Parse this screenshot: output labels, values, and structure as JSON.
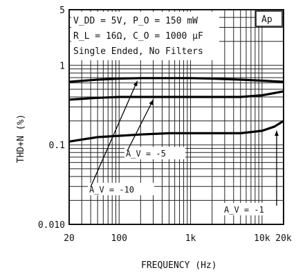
{
  "chart_data": {
    "type": "line",
    "xlabel": "FREQUENCY (Hz)",
    "ylabel": "THD+N (%)",
    "x_scale": "log",
    "y_scale": "log",
    "xlim": [
      20,
      20000
    ],
    "ylim": [
      0.01,
      5
    ],
    "grid": true,
    "x_ticks": [
      {
        "value": 20,
        "label": "20"
      },
      {
        "value": 100,
        "label": "100"
      },
      {
        "value": 1000,
        "label": "1k"
      },
      {
        "value": 10000,
        "label": "10k"
      },
      {
        "value": 20000,
        "label": "20k"
      }
    ],
    "y_ticks": [
      {
        "value": 5,
        "label": "5"
      },
      {
        "value": 1,
        "label": "1"
      },
      {
        "value": 0.1,
        "label": "0.1"
      },
      {
        "value": 0.01,
        "label": "0.010"
      }
    ],
    "conditions": [
      "V_DD = 5V, P_O = 150 mW",
      "R_L = 16Ω, C_O = 1000 μF",
      "Single Ended, No Filters"
    ],
    "badge": "Ap",
    "series": [
      {
        "name": "A_V = -10",
        "x": [
          20,
          50,
          100,
          200,
          500,
          1000,
          2000,
          5000,
          10000,
          20000
        ],
        "y": [
          0.62,
          0.66,
          0.68,
          0.69,
          0.69,
          0.69,
          0.68,
          0.66,
          0.64,
          0.62
        ]
      },
      {
        "name": "A_V = -5",
        "x": [
          20,
          50,
          100,
          200,
          500,
          1000,
          2000,
          5000,
          10000,
          20000
        ],
        "y": [
          0.37,
          0.39,
          0.4,
          0.4,
          0.4,
          0.4,
          0.4,
          0.4,
          0.42,
          0.47
        ]
      },
      {
        "name": "A_V = -1",
        "x": [
          20,
          50,
          100,
          200,
          500,
          1000,
          2000,
          5000,
          10000,
          15000,
          20000
        ],
        "y": [
          0.11,
          0.125,
          0.13,
          0.135,
          0.14,
          0.14,
          0.14,
          0.14,
          0.15,
          0.17,
          0.2
        ]
      }
    ]
  }
}
